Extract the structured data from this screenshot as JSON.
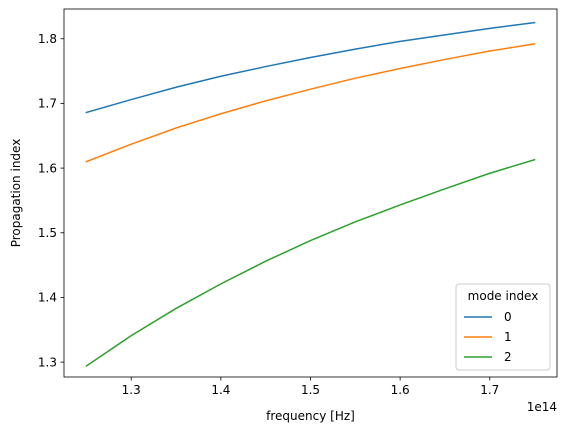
{
  "chart_data": {
    "type": "line",
    "xlabel": "frequency [Hz]",
    "ylabel": "Propagation index",
    "x_offset_label": "1e14",
    "xlim": [
      1.225,
      1.775
    ],
    "ylim": [
      1.277,
      1.846
    ],
    "x_ticks": [
      1.3,
      1.4,
      1.5,
      1.6,
      1.7
    ],
    "x_tick_labels": [
      "1.3",
      "1.4",
      "1.5",
      "1.6",
      "1.7"
    ],
    "y_ticks": [
      1.3,
      1.4,
      1.5,
      1.6,
      1.7,
      1.8
    ],
    "y_tick_labels": [
      "1.3",
      "1.4",
      "1.5",
      "1.6",
      "1.7",
      "1.8"
    ],
    "grid": false,
    "legend": {
      "title": "mode index",
      "position": "lower-right"
    },
    "x": [
      1.25,
      1.3,
      1.35,
      1.4,
      1.45,
      1.5,
      1.55,
      1.6,
      1.65,
      1.7,
      1.75
    ],
    "series": [
      {
        "name": "0",
        "color": "#1f77b4",
        "values": [
          1.686,
          1.706,
          1.725,
          1.742,
          1.757,
          1.771,
          1.784,
          1.796,
          1.806,
          1.816,
          1.825
        ]
      },
      {
        "name": "1",
        "color": "#ff7f0e",
        "values": [
          1.61,
          1.637,
          1.662,
          1.684,
          1.704,
          1.722,
          1.739,
          1.754,
          1.768,
          1.781,
          1.792
        ]
      },
      {
        "name": "2",
        "color": "#2ca02c",
        "values": [
          1.294,
          1.341,
          1.383,
          1.421,
          1.456,
          1.488,
          1.517,
          1.543,
          1.568,
          1.592,
          1.613
        ]
      }
    ]
  }
}
